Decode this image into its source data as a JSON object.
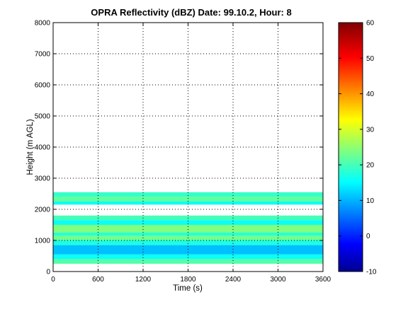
{
  "chart_data": {
    "type": "heatmap",
    "title": "OPRA Reflectivity (dBZ)  Date: 99.10.2, Hour: 8",
    "xlabel": "Time (s)",
    "ylabel": "Height (m AGL)",
    "xlim": [
      0,
      3600
    ],
    "ylim": [
      0,
      8000
    ],
    "xticks": [
      0,
      600,
      1200,
      1800,
      2400,
      3000,
      3600
    ],
    "yticks": [
      0,
      1000,
      2000,
      3000,
      4000,
      5000,
      6000,
      7000,
      8000
    ],
    "grid": true,
    "colorbar": {
      "colormap": "jet",
      "range": [
        -10,
        60
      ],
      "ticks": [
        -10,
        0,
        10,
        20,
        30,
        40,
        50,
        60
      ]
    },
    "layers": [
      {
        "y0": 250,
        "y1": 400,
        "dbz": 22
      },
      {
        "y0": 400,
        "y1": 550,
        "dbz": 17
      },
      {
        "y0": 550,
        "y1": 850,
        "dbz": 12
      },
      {
        "y0": 850,
        "y1": 1000,
        "dbz": 18
      },
      {
        "y0": 1000,
        "y1": 1150,
        "dbz": 24
      },
      {
        "y0": 1150,
        "y1": 1250,
        "dbz": 19
      },
      {
        "y0": 1250,
        "y1": 1500,
        "dbz": 25
      },
      {
        "y0": 1500,
        "y1": 1650,
        "dbz": 17
      },
      {
        "y0": 1650,
        "y1": 1800,
        "dbz": 21
      },
      {
        "y0": 2150,
        "y1": 2350,
        "dbz": 17
      },
      {
        "y0": 2250,
        "y1": 2400,
        "dbz": 23
      },
      {
        "y0": 2400,
        "y1": 2550,
        "dbz": 20
      }
    ]
  }
}
